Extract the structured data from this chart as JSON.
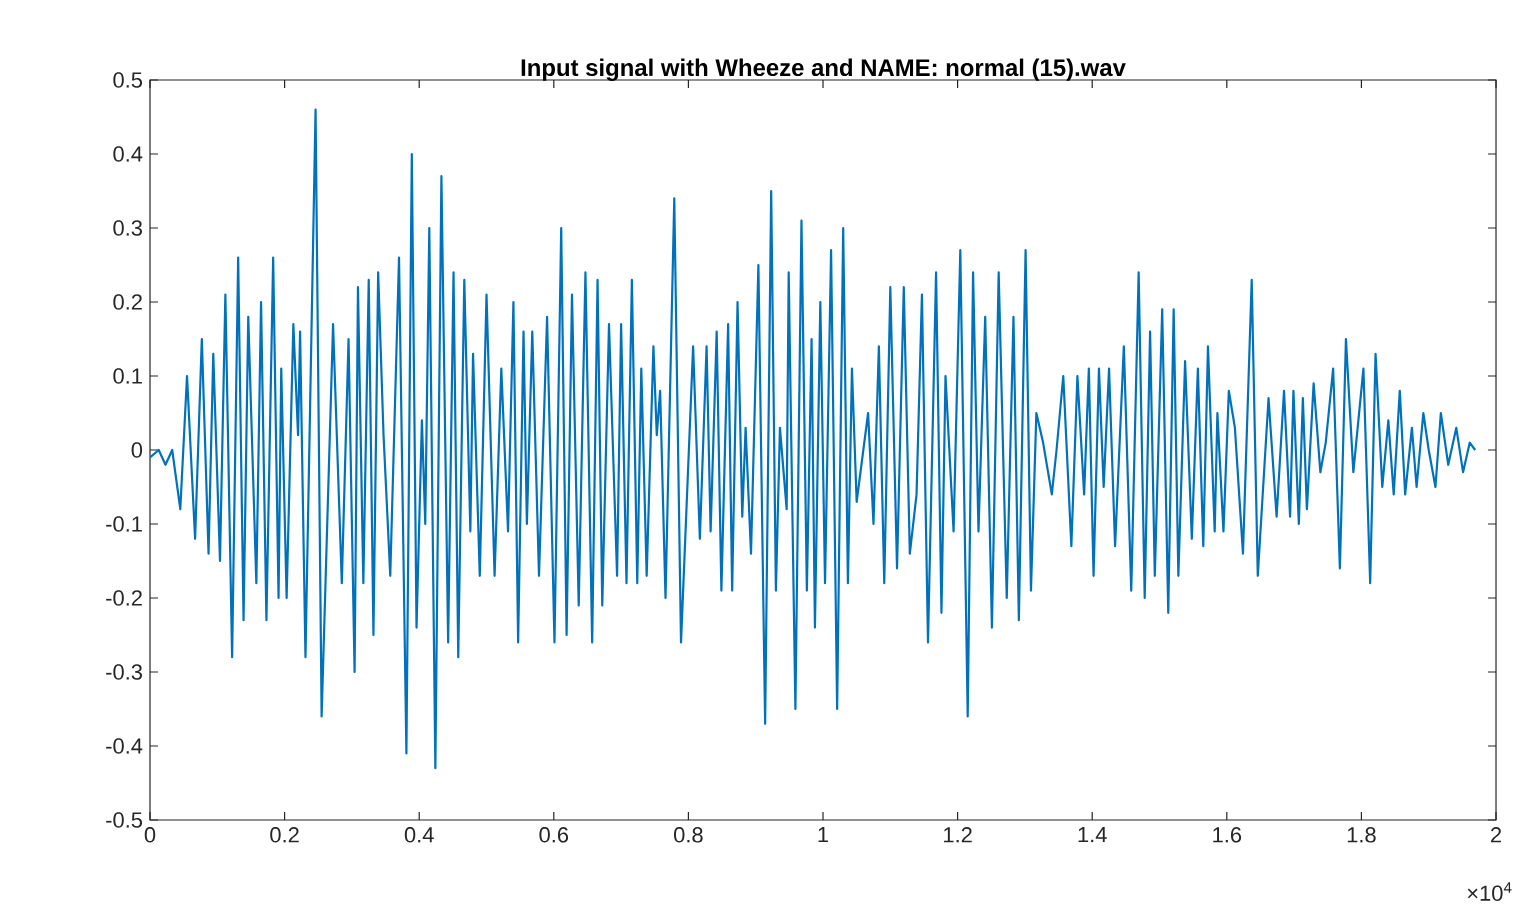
{
  "chart_data": {
    "type": "line",
    "title": "Input signal with Wheeze and NAME: normal (15).wav",
    "annotations": [
      "×10$^{4}$"
    ],
    "xlim": [
      0,
      2
    ],
    "ylim": [
      -0.5,
      0.5
    ],
    "xticks": [
      0,
      0.2,
      0.4,
      0.6,
      0.8,
      1,
      1.2,
      1.4,
      1.6,
      1.8,
      2
    ],
    "yticks": [
      -0.5,
      -0.4,
      -0.3,
      -0.2,
      -0.1,
      0,
      0.1,
      0.2,
      0.3,
      0.4,
      0.5
    ],
    "series": [
      {
        "color": "#0072bd",
        "x": [
          0,
          0.013,
          0.023,
          0.033,
          0.045,
          0.055,
          0.067,
          0.077,
          0.087,
          0.094,
          0.104,
          0.112,
          0.122,
          0.131,
          0.139,
          0.146,
          0.158,
          0.165,
          0.173,
          0.183,
          0.191,
          0.195,
          0.203,
          0.213,
          0.22,
          0.223,
          0.231,
          0.246,
          0.255,
          0.272,
          0.285,
          0.295,
          0.304,
          0.309,
          0.317,
          0.325,
          0.332,
          0.339,
          0.347,
          0.357,
          0.37,
          0.381,
          0.389,
          0.396,
          0.404,
          0.409,
          0.415,
          0.424,
          0.433,
          0.443,
          0.451,
          0.458,
          0.467,
          0.476,
          0.48,
          0.49,
          0.5,
          0.512,
          0.522,
          0.532,
          0.54,
          0.547,
          0.555,
          0.56,
          0.568,
          0.578,
          0.59,
          0.601,
          0.611,
          0.619,
          0.627,
          0.637,
          0.647,
          0.657,
          0.665,
          0.672,
          0.682,
          0.694,
          0.7,
          0.708,
          0.716,
          0.724,
          0.73,
          0.738,
          0.748,
          0.753,
          0.758,
          0.766,
          0.779,
          0.789,
          0.807,
          0.817,
          0.827,
          0.833,
          0.842,
          0.849,
          0.859,
          0.865,
          0.873,
          0.88,
          0.885,
          0.893,
          0.904,
          0.914,
          0.923,
          0.93,
          0.936,
          0.946,
          0.949,
          0.959,
          0.968,
          0.976,
          0.983,
          0.988,
          0.996,
          1.003,
          1.012,
          1.021,
          1.03,
          1.037,
          1.043,
          1.05,
          1.067,
          1.075,
          1.083,
          1.091,
          1.1,
          1.11,
          1.12,
          1.129,
          1.139,
          1.147,
          1.156,
          1.168,
          1.176,
          1.182,
          1.194,
          1.204,
          1.215,
          1.223,
          1.231,
          1.241,
          1.251,
          1.261,
          1.273,
          1.283,
          1.291,
          1.301,
          1.309,
          1.317,
          1.327,
          1.34,
          1.347,
          1.357,
          1.369,
          1.378,
          1.388,
          1.395,
          1.402,
          1.41,
          1.417,
          1.425,
          1.434,
          1.447,
          1.458,
          1.469,
          1.478,
          1.486,
          1.493,
          1.504,
          1.513,
          1.521,
          1.528,
          1.538,
          1.548,
          1.557,
          1.565,
          1.572,
          1.582,
          1.586,
          1.595,
          1.603,
          1.612,
          1.624,
          1.637,
          1.646,
          1.662,
          1.674,
          1.685,
          1.694,
          1.699,
          1.707,
          1.713,
          1.719,
          1.729,
          1.739,
          1.747,
          1.758,
          1.768,
          1.777,
          1.788,
          1.803,
          1.813,
          1.821,
          1.831,
          1.84,
          1.848,
          1.857,
          1.865,
          1.875,
          1.882,
          1.892,
          1.9,
          1.91,
          1.918,
          1.929,
          1.941,
          1.951,
          1.961,
          1.969
        ],
        "values": [
          -0.01,
          0.0,
          -0.02,
          0.0,
          -0.08,
          0.1,
          -0.12,
          0.15,
          -0.14,
          0.13,
          -0.15,
          0.21,
          -0.28,
          0.26,
          -0.23,
          0.18,
          -0.18,
          0.2,
          -0.23,
          0.26,
          -0.2,
          0.11,
          -0.2,
          0.17,
          0.02,
          0.16,
          -0.28,
          0.46,
          -0.36,
          0.17,
          -0.18,
          0.15,
          -0.3,
          0.22,
          -0.18,
          0.23,
          -0.25,
          0.24,
          0.02,
          -0.17,
          0.26,
          -0.41,
          0.4,
          -0.24,
          0.04,
          -0.1,
          0.3,
          -0.43,
          0.37,
          -0.26,
          0.24,
          -0.28,
          0.23,
          -0.11,
          0.13,
          -0.17,
          0.21,
          -0.17,
          0.11,
          -0.11,
          0.2,
          -0.26,
          0.16,
          -0.1,
          0.16,
          -0.17,
          0.18,
          -0.26,
          0.3,
          -0.25,
          0.21,
          -0.21,
          0.24,
          -0.26,
          0.23,
          -0.21,
          0.17,
          -0.17,
          0.17,
          -0.18,
          0.23,
          -0.18,
          0.11,
          -0.17,
          0.14,
          0.02,
          0.08,
          -0.2,
          0.34,
          -0.26,
          0.14,
          -0.12,
          0.14,
          -0.11,
          0.16,
          -0.19,
          0.17,
          -0.19,
          0.2,
          -0.09,
          0.03,
          -0.14,
          0.25,
          -0.37,
          0.35,
          -0.19,
          0.03,
          -0.08,
          0.24,
          -0.35,
          0.31,
          -0.19,
          0.15,
          -0.24,
          0.2,
          -0.18,
          0.27,
          -0.35,
          0.3,
          -0.18,
          0.11,
          -0.07,
          0.05,
          -0.1,
          0.14,
          -0.18,
          0.22,
          -0.16,
          0.22,
          -0.14,
          -0.06,
          0.21,
          -0.26,
          0.24,
          -0.22,
          0.1,
          -0.11,
          0.27,
          -0.36,
          0.24,
          -0.11,
          0.18,
          -0.24,
          0.24,
          -0.2,
          0.18,
          -0.23,
          0.27,
          -0.19,
          0.05,
          0.01,
          -0.06,
          0.0,
          0.1,
          -0.13,
          0.1,
          -0.06,
          0.11,
          -0.17,
          0.11,
          -0.05,
          0.11,
          -0.13,
          0.14,
          -0.19,
          0.24,
          -0.2,
          0.16,
          -0.17,
          0.19,
          -0.22,
          0.19,
          -0.17,
          0.12,
          -0.12,
          0.11,
          -0.13,
          0.14,
          -0.11,
          0.05,
          -0.11,
          0.08,
          0.03,
          -0.14,
          0.23,
          -0.17,
          0.07,
          -0.09,
          0.08,
          -0.09,
          0.08,
          -0.1,
          0.07,
          -0.08,
          0.09,
          -0.03,
          0.01,
          0.11,
          -0.16,
          0.15,
          -0.03,
          0.11,
          -0.18,
          0.13,
          -0.05,
          0.04,
          -0.06,
          0.08,
          -0.06,
          0.03,
          -0.05,
          0.05,
          0.0,
          -0.05,
          0.05,
          -0.02,
          0.03,
          -0.03,
          0.01,
          0.0
        ]
      }
    ]
  }
}
